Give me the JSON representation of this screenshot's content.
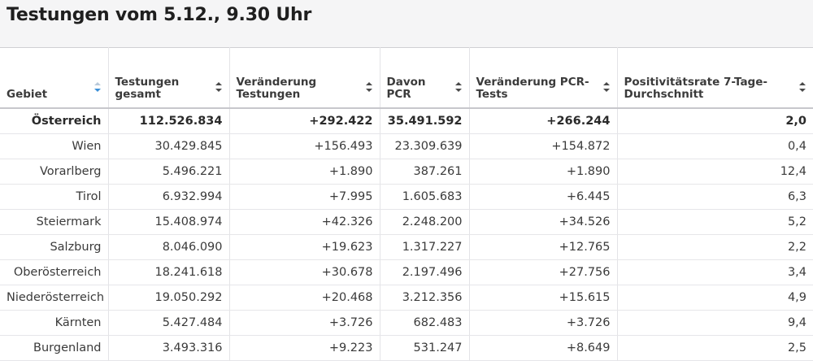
{
  "title": "Testungen vom 5.12., 9.30 Uhr",
  "columns": [
    {
      "label": "Gebiet"
    },
    {
      "label": "Testungen gesamt"
    },
    {
      "label": "Veränderung Testungen"
    },
    {
      "label": "Davon PCR"
    },
    {
      "label": "Veränderung PCR-Tests"
    },
    {
      "label": "Positivitätsrate 7-Tage-Durchschnitt"
    }
  ],
  "rows": [
    {
      "gebiet": "Österreich",
      "testungen": "112.526.834",
      "veraenderung": "+292.422",
      "pcr": "35.491.592",
      "veraenderung_pcr": "+266.244",
      "rate": "2,0"
    },
    {
      "gebiet": "Wien",
      "testungen": "30.429.845",
      "veraenderung": "+156.493",
      "pcr": "23.309.639",
      "veraenderung_pcr": "+154.872",
      "rate": "0,4"
    },
    {
      "gebiet": "Vorarlberg",
      "testungen": "5.496.221",
      "veraenderung": "+1.890",
      "pcr": "387.261",
      "veraenderung_pcr": "+1.890",
      "rate": "12,4"
    },
    {
      "gebiet": "Tirol",
      "testungen": "6.932.994",
      "veraenderung": "+7.995",
      "pcr": "1.605.683",
      "veraenderung_pcr": "+6.445",
      "rate": "6,3"
    },
    {
      "gebiet": "Steiermark",
      "testungen": "15.408.974",
      "veraenderung": "+42.326",
      "pcr": "2.248.200",
      "veraenderung_pcr": "+34.526",
      "rate": "5,2"
    },
    {
      "gebiet": "Salzburg",
      "testungen": "8.046.090",
      "veraenderung": "+19.623",
      "pcr": "1.317.227",
      "veraenderung_pcr": "+12.765",
      "rate": "2,2"
    },
    {
      "gebiet": "Oberösterreich",
      "testungen": "18.241.618",
      "veraenderung": "+30.678",
      "pcr": "2.197.496",
      "veraenderung_pcr": "+27.756",
      "rate": "3,4"
    },
    {
      "gebiet": "Niederösterreich",
      "testungen": "19.050.292",
      "veraenderung": "+20.468",
      "pcr": "3.212.356",
      "veraenderung_pcr": "+15.615",
      "rate": "4,9"
    },
    {
      "gebiet": "Kärnten",
      "testungen": "5.427.484",
      "veraenderung": "+3.726",
      "pcr": "682.483",
      "veraenderung_pcr": "+3.726",
      "rate": "9,4"
    },
    {
      "gebiet": "Burgenland",
      "testungen": "3.493.316",
      "veraenderung": "+9.223",
      "pcr": "531.247",
      "veraenderung_pcr": "+8.649",
      "rate": "2,5"
    }
  ],
  "icons": {
    "sort": "sort-arrows-icon",
    "sort_active": "sort-descending-icon"
  },
  "colors": {
    "header_bg": "#f5f5f6",
    "sort_active": "#3a8fd8",
    "sort_inactive": "#4a4a4a"
  }
}
